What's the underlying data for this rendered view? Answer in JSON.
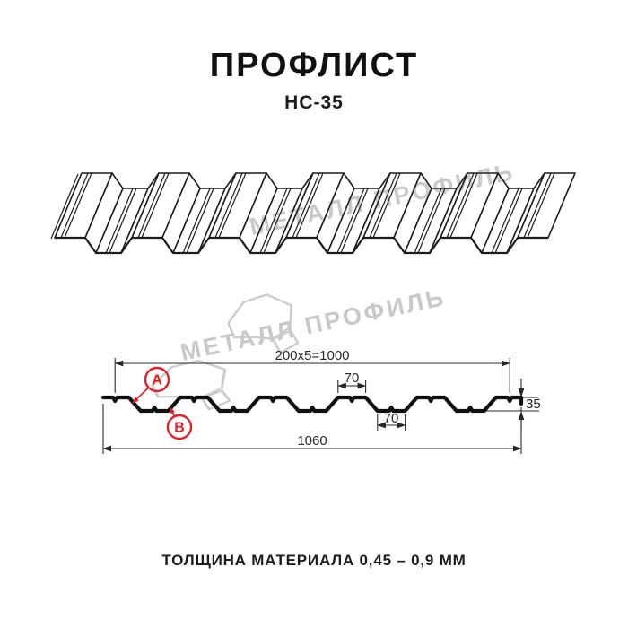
{
  "header": {
    "title": "ПРОФЛИСТ",
    "subtitle": "НС-35"
  },
  "watermark": {
    "text": "МЕТАЛЛ ПРОФИЛЬ"
  },
  "cross_section": {
    "dim_module": "200x5=1000",
    "dim_crest_width": "70",
    "dim_valley_width": "70",
    "dim_total_width": "1060",
    "dim_height": "35",
    "marker_a": "A",
    "marker_b": "B"
  },
  "footer": {
    "material_thickness": "ТОЛЩИНА МАТЕРИАЛА 0,45 – 0,9 ММ"
  },
  "colors": {
    "accent_red": "#E31E24",
    "line_black": "#1C1C1C",
    "watermark_gray": "#C9C9C9"
  }
}
